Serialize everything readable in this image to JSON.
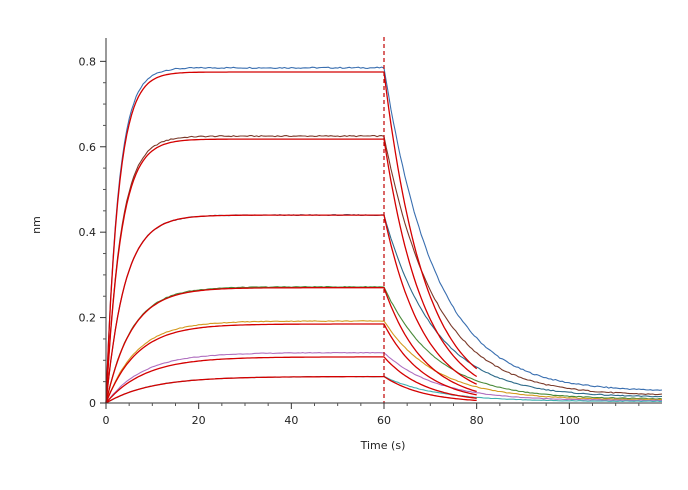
{
  "chart_data": {
    "type": "line",
    "title": "",
    "xlabel": "Time (s)",
    "ylabel": "nm",
    "xlim": [
      0,
      120
    ],
    "ylim": [
      0,
      0.85
    ],
    "x_ticks": [
      0,
      20,
      40,
      60,
      80,
      100
    ],
    "y_ticks": [
      0,
      0.2,
      0.4,
      0.6,
      0.8
    ],
    "x_tick_labels": [
      "0",
      "20",
      "40",
      "60",
      "80",
      "100"
    ],
    "y_tick_labels": [
      "0",
      "0.2",
      "0.4",
      "0.6",
      "0.8"
    ],
    "grid": false,
    "legend": "none",
    "association_end": 60,
    "x_end_observed": 120,
    "x_end_fitted": 80,
    "marker_line": {
      "x": 60,
      "color": "#c00000",
      "style": "dashed"
    },
    "series": [
      {
        "kind": "observed",
        "plateau": 0.785,
        "end_value": 0.03,
        "color": "#3a6fb0"
      },
      {
        "kind": "observed",
        "plateau": 0.625,
        "end_value": 0.02,
        "color": "#7a3a2a"
      },
      {
        "kind": "observed",
        "plateau": 0.44,
        "end_value": 0.015,
        "color": "#2e6b8a"
      },
      {
        "kind": "observed",
        "plateau": 0.272,
        "end_value": 0.01,
        "color": "#4a8a3a"
      },
      {
        "kind": "observed",
        "plateau": 0.192,
        "end_value": 0.008,
        "color": "#d49a20"
      },
      {
        "kind": "observed",
        "plateau": 0.118,
        "end_value": 0.006,
        "color": "#b070c0"
      },
      {
        "kind": "observed",
        "plateau": 0.062,
        "end_value": 0.004,
        "color": "#40b0b0"
      },
      {
        "kind": "fit",
        "plateau": 0.775,
        "end_value": 0.08,
        "color": "#d40000"
      },
      {
        "kind": "fit",
        "plateau": 0.618,
        "end_value": 0.062,
        "color": "#d40000"
      },
      {
        "kind": "fit",
        "plateau": 0.44,
        "end_value": 0.044,
        "color": "#d40000"
      },
      {
        "kind": "fit",
        "plateau": 0.27,
        "end_value": 0.027,
        "color": "#d40000"
      },
      {
        "kind": "fit",
        "plateau": 0.185,
        "end_value": 0.019,
        "color": "#d40000"
      },
      {
        "kind": "fit",
        "plateau": 0.108,
        "end_value": 0.011,
        "color": "#d40000"
      },
      {
        "kind": "fit",
        "plateau": 0.062,
        "end_value": 0.006,
        "color": "#d40000"
      }
    ]
  }
}
